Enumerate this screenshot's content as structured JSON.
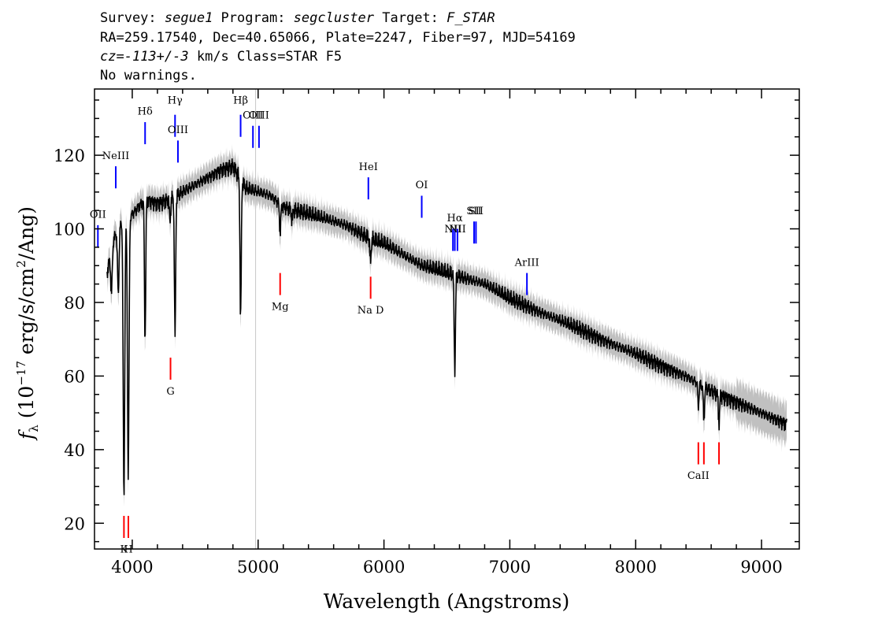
{
  "header": {
    "line1": {
      "survey_label": "Survey: ",
      "survey": "segue1",
      "program_label": " Program: ",
      "program": "segcluster",
      "target_label": " Target: ",
      "target": "F_STAR"
    },
    "line2": "RA=259.17540, Dec=40.65066, Plate=2247, Fiber=97, MJD=54169",
    "line3": {
      "cz_label": "cz=",
      "cz": "-113+/-3",
      "rest": " km/s Class=STAR F5"
    },
    "line4": "No warnings."
  },
  "chart_data": {
    "type": "line",
    "xlabel": "Wavelength (Angstroms)",
    "ylabel": "f_λ (10^-17 erg/s/cm²/Ang)",
    "xlim": [
      3700,
      9300
    ],
    "ylim": [
      13,
      138
    ],
    "xticks": [
      "4000",
      "5000",
      "6000",
      "7000",
      "8000",
      "9000"
    ],
    "yticks": [
      "20",
      "40",
      "60",
      "80",
      "100",
      "120"
    ],
    "reference_line_x": 4980,
    "colors": {
      "flux": "#000000",
      "error_band": "#c0c0c0",
      "emission": "#0000ff",
      "absorption": "#ff0000",
      "reference": "#c8c8c8"
    },
    "continuum": {
      "x": [
        3800,
        3850,
        3900,
        3950,
        4000,
        4050,
        4100,
        4200,
        4300,
        4400,
        4500,
        4600,
        4700,
        4800,
        4850,
        4900,
        5000,
        5100,
        5200,
        5300,
        5400,
        5500,
        5600,
        5700,
        5800,
        5900,
        6000,
        6100,
        6200,
        6300,
        6400,
        6500,
        6600,
        6700,
        6800,
        6900,
        7000,
        7200,
        7400,
        7600,
        7800,
        8000,
        8200,
        8400,
        8600,
        8800,
        9000,
        9200
      ],
      "y": [
        88,
        97,
        101,
        102,
        104,
        106,
        108,
        107,
        108,
        110,
        112,
        114,
        116,
        117,
        114,
        111,
        110,
        109,
        106,
        105,
        104,
        103,
        102,
        101,
        99,
        97,
        96,
        94,
        92,
        90,
        89,
        88,
        87,
        86,
        85,
        83,
        81,
        78,
        75,
        72,
        69,
        66,
        63,
        60,
        56,
        53,
        50,
        47
      ]
    },
    "absorption_features": [
      {
        "x": 3835,
        "depth": 12
      },
      {
        "x": 3889,
        "depth": 18
      },
      {
        "x": 3934,
        "depth": 75
      },
      {
        "x": 3968,
        "depth": 70
      },
      {
        "x": 4102,
        "depth": 38
      },
      {
        "x": 4300,
        "depth": 6
      },
      {
        "x": 4340,
        "depth": 38
      },
      {
        "x": 4861,
        "depth": 38
      },
      {
        "x": 5175,
        "depth": 8
      },
      {
        "x": 5270,
        "depth": 3
      },
      {
        "x": 5893,
        "depth": 6
      },
      {
        "x": 6563,
        "depth": 26
      },
      {
        "x": 8498,
        "depth": 6
      },
      {
        "x": 8542,
        "depth": 9
      },
      {
        "x": 8662,
        "depth": 8
      }
    ],
    "line_markers": [
      {
        "label": "OII",
        "x": 3727,
        "type": "emission",
        "y1": 95,
        "y2": 101,
        "label_y": 103
      },
      {
        "label": "NeIII",
        "x": 3869,
        "type": "emission",
        "y1": 111,
        "y2": 117,
        "label_y": 119
      },
      {
        "label": "Hδ",
        "x": 4102,
        "type": "emission",
        "y1": 123,
        "y2": 129,
        "label_y": 131
      },
      {
        "label": "Hγ",
        "x": 4340,
        "type": "emission",
        "y1": 125,
        "y2": 131,
        "label_y": 134
      },
      {
        "label": "OIII",
        "x": 4363,
        "type": "emission",
        "y1": 118,
        "y2": 124,
        "label_y": 126
      },
      {
        "label": "Hβ",
        "x": 4861,
        "type": "emission",
        "y1": 125,
        "y2": 131,
        "label_y": 134
      },
      {
        "label": "OIII",
        "x": 4959,
        "type": "emission",
        "y1": 122,
        "y2": 128,
        "label_y": 130
      },
      {
        "label": "OIII",
        "x": 5007,
        "type": "emission",
        "y1": 122,
        "y2": 128,
        "label_y": 130
      },
      {
        "label": "HeI",
        "x": 5876,
        "type": "emission",
        "y1": 108,
        "y2": 114,
        "label_y": 116
      },
      {
        "label": "OI",
        "x": 6300,
        "type": "emission",
        "y1": 103,
        "y2": 109,
        "label_y": 111
      },
      {
        "label": "NII",
        "x": 6548,
        "type": "emission",
        "y1": 94,
        "y2": 100,
        "label_y": 99
      },
      {
        "label": "Hα",
        "x": 6563,
        "type": "emission",
        "y1": 94,
        "y2": 100,
        "label_y": 102
      },
      {
        "label": "NII",
        "x": 6584,
        "type": "emission",
        "y1": 94,
        "y2": 100,
        "label_y": 99
      },
      {
        "label": "SII",
        "x": 6716,
        "type": "emission",
        "y1": 96,
        "y2": 102,
        "label_y": 104
      },
      {
        "label": "SII",
        "x": 6731,
        "type": "emission",
        "y1": 96,
        "y2": 102,
        "label_y": 104
      },
      {
        "label": "ArIII",
        "x": 7136,
        "type": "emission",
        "y1": 82,
        "y2": 88,
        "label_y": 90
      },
      {
        "label": "K",
        "x": 3934,
        "type": "absorption",
        "y1": 16,
        "y2": 22,
        "label_y": 12
      },
      {
        "label": "H",
        "x": 3969,
        "type": "absorption",
        "y1": 16,
        "y2": 22,
        "label_y": 12
      },
      {
        "label": "G",
        "x": 4304,
        "type": "absorption",
        "y1": 59,
        "y2": 65,
        "label_y": 55
      },
      {
        "label": "Mg",
        "x": 5175,
        "type": "absorption",
        "y1": 82,
        "y2": 88,
        "label_y": 78
      },
      {
        "label": "Na D",
        "x": 5894,
        "type": "absorption",
        "y1": 81,
        "y2": 87,
        "label_y": 77
      },
      {
        "label": "CaII",
        "x": 8498,
        "type": "absorption",
        "y1": 36,
        "y2": 42,
        "label_y": 32
      },
      {
        "label": "",
        "x": 8542,
        "type": "absorption",
        "y1": 36,
        "y2": 42
      },
      {
        "label": "",
        "x": 8662,
        "type": "absorption",
        "y1": 36,
        "y2": 42
      }
    ]
  }
}
